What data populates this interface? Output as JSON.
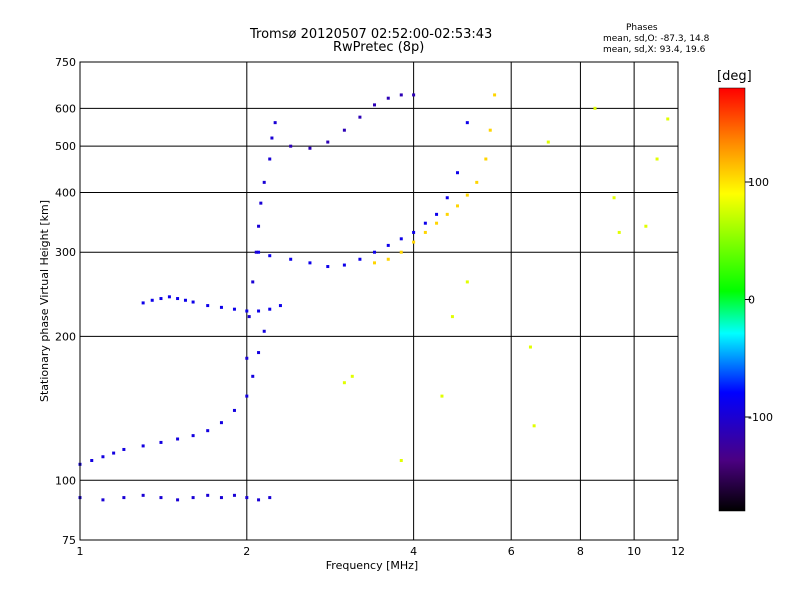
{
  "title_line1": "Tromsø 20120507 02:52:00-02:53:43",
  "title_line2": "RwPretec (8p)",
  "phases_box": {
    "title": "Phases",
    "o_line": "mean, sd,O: -87.3, 14.8",
    "x_line": "mean, sd,X: 93.4, 19.6"
  },
  "colorbar": {
    "label": "[deg]",
    "ticks": [
      {
        "value": 100,
        "label": "100"
      },
      {
        "value": 0,
        "label": "0"
      },
      {
        "value": -100,
        "label": "-100"
      }
    ],
    "range": [
      -180,
      180
    ]
  },
  "chart_data": {
    "type": "scatter",
    "xlabel": "Frequency [MHz]",
    "ylabel": "Stationary phase Virtual Height [km]",
    "xscale": "log",
    "yscale": "log",
    "xlim": [
      1,
      12
    ],
    "ylim": [
      75,
      750
    ],
    "xticks": [
      {
        "value": 1,
        "label": "1"
      },
      {
        "value": 2,
        "label": "2"
      },
      {
        "value": 4,
        "label": "4"
      },
      {
        "value": 6,
        "label": "6"
      },
      {
        "value": 8,
        "label": "8"
      },
      {
        "value": 10,
        "label": "10"
      },
      {
        "value": 12,
        "label": "12"
      }
    ],
    "yticks": [
      {
        "value": 75,
        "label": "75"
      },
      {
        "value": 100,
        "label": "100"
      },
      {
        "value": 200,
        "label": "200"
      },
      {
        "value": 300,
        "label": "300"
      },
      {
        "value": 400,
        "label": "400"
      },
      {
        "value": 500,
        "label": "500"
      },
      {
        "value": 600,
        "label": "600"
      },
      {
        "value": 750,
        "label": "750"
      }
    ],
    "grid": true,
    "color_scale": "phase in degrees, -180 (black) to 180 (red)",
    "series": [
      {
        "label": "O-mode E-region trace",
        "phase": -95,
        "x": [
          1.0,
          1.05,
          1.1,
          1.15,
          1.2,
          1.3,
          1.4,
          1.5,
          1.6,
          1.7,
          1.8,
          1.9,
          2.0,
          2.05,
          2.1,
          2.15
        ],
        "y": [
          108,
          110,
          112,
          114,
          116,
          118,
          120,
          122,
          124,
          127,
          132,
          140,
          150,
          165,
          185,
          205
        ]
      },
      {
        "label": "Low trace near 90 km",
        "phase": -100,
        "x": [
          1.0,
          1.1,
          1.2,
          1.3,
          1.4,
          1.5,
          1.6,
          1.7,
          1.8,
          1.9,
          2.0,
          2.1,
          2.2
        ],
        "y": [
          92,
          91,
          92,
          93,
          92,
          91,
          92,
          93,
          92,
          93,
          92,
          91,
          92
        ]
      },
      {
        "label": "O-mode F1 trace",
        "phase": -90,
        "x": [
          1.3,
          1.35,
          1.4,
          1.45,
          1.5,
          1.55,
          1.6,
          1.7,
          1.8,
          1.9,
          2.0,
          2.1,
          2.2,
          2.3
        ],
        "y": [
          235,
          238,
          240,
          242,
          240,
          238,
          236,
          232,
          230,
          228,
          226,
          226,
          228,
          232
        ]
      },
      {
        "label": "O-mode F2 trace",
        "phase": -90,
        "x": [
          2.1,
          2.2,
          2.4,
          2.6,
          2.8,
          3.0,
          3.2,
          3.4,
          3.6,
          3.8,
          4.0,
          4.2,
          4.4,
          4.6,
          4.8,
          5.0
        ],
        "y": [
          300,
          295,
          290,
          285,
          280,
          282,
          290,
          300,
          310,
          320,
          330,
          345,
          360,
          390,
          440,
          560
        ]
      },
      {
        "label": "Spread F near 2 MHz",
        "phase": -100,
        "x": [
          2.0,
          2.02,
          2.05,
          2.08,
          2.1,
          2.12,
          2.15,
          2.2,
          2.22,
          2.25
        ],
        "y": [
          180,
          220,
          260,
          300,
          340,
          380,
          420,
          470,
          520,
          560
        ]
      },
      {
        "label": "Upper O trace",
        "phase": -115,
        "x": [
          2.4,
          2.6,
          2.8,
          3.0,
          3.2,
          3.4,
          3.6,
          3.8,
          4.0
        ],
        "y": [
          500,
          495,
          510,
          540,
          575,
          610,
          630,
          640,
          640
        ]
      },
      {
        "label": "X-mode F2 trace",
        "phase": 105,
        "x": [
          3.4,
          3.6,
          3.8,
          4.0,
          4.2,
          4.4,
          4.6,
          4.8,
          5.0,
          5.2,
          5.4,
          5.5,
          5.6
        ],
        "y": [
          285,
          290,
          300,
          315,
          330,
          345,
          360,
          375,
          395,
          420,
          470,
          540,
          640
        ]
      },
      {
        "label": "Scattered points",
        "phase": 80,
        "x": [
          3.0,
          3.1,
          3.8,
          6.5,
          6.6,
          7.0,
          8.5,
          9.2,
          9.4,
          10.5,
          11.0,
          11.5,
          4.5,
          4.7,
          5.0
        ],
        "y": [
          160,
          165,
          110,
          190,
          130,
          510,
          600,
          390,
          330,
          340,
          470,
          570,
          150,
          220,
          260
        ]
      }
    ]
  }
}
